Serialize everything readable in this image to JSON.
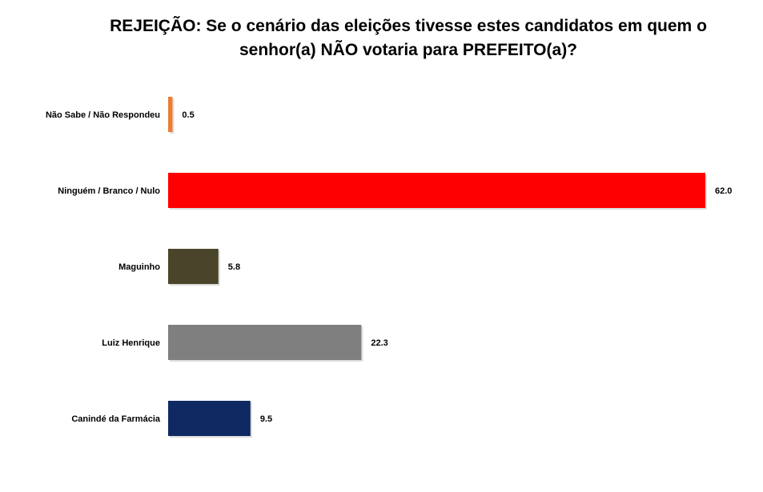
{
  "chart_data": {
    "type": "bar",
    "orientation": "horizontal",
    "title_lines": [
      "REJEIÇÃO: Se o cenário das eleições tivesse estes candidatos em quem o",
      "senhor(a) NÃO votaria para PREFEITO(a)?"
    ],
    "categories": [
      "Não Sabe / Não Respondeu",
      "Ninguém / Branco / Nulo",
      "Maguinho",
      "Luiz Henrique",
      "Canindé da Farmácia"
    ],
    "values": [
      0.5,
      62.0,
      5.8,
      22.3,
      9.5
    ],
    "value_labels": [
      "0.5",
      "62.0",
      "5.8",
      "22.3",
      "9.5"
    ],
    "colors": [
      "#ED7D31",
      "#FF0000",
      "#4A452A",
      "#7F7F7F",
      "#0F2A63"
    ],
    "xlim": [
      0,
      62
    ],
    "grid": false,
    "legend": "none"
  }
}
